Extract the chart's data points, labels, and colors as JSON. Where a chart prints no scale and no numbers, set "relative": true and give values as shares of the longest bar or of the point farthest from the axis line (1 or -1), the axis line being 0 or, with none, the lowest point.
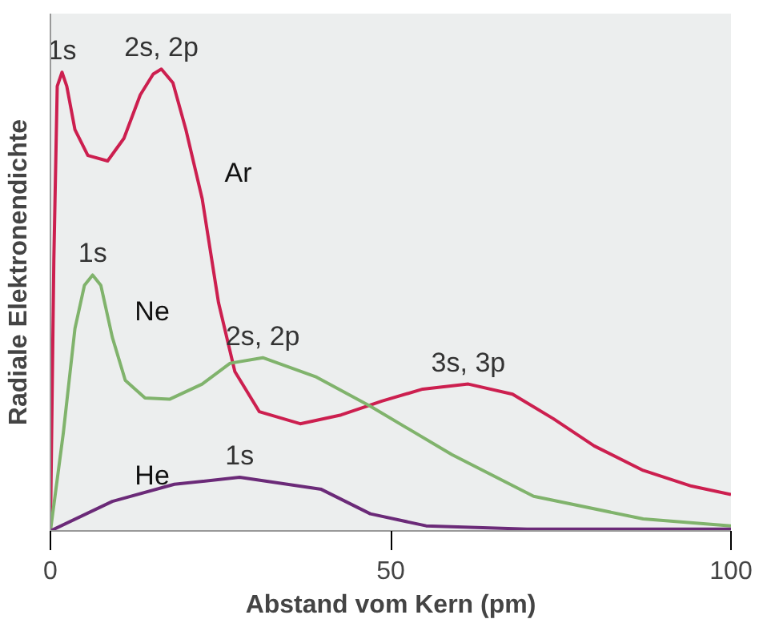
{
  "chart_data": {
    "type": "line",
    "relative": true,
    "xlabel": "Abstand vom Kern (pm)",
    "ylabel": "Radiale Elektronendichte",
    "xlim": [
      0,
      100
    ],
    "xticks": [
      0,
      50,
      100
    ],
    "grid": false,
    "tick_labels": "x",
    "series": [
      {
        "color": "#cc1f4f",
        "x": [
          0,
          0.5,
          1.0,
          1.7,
          2.4,
          3.6,
          5.5,
          8.4,
          10.8,
          13.2,
          15.1,
          16.3,
          18.0,
          19.9,
          22.3,
          24.7,
          27.1,
          30.7,
          36.7,
          42.7,
          48.7,
          54.7,
          61.4,
          67.9,
          73.9,
          79.9,
          87.1,
          94.2,
          100
        ],
        "values": [
          0,
          0.588,
          0.963,
          0.993,
          0.963,
          0.869,
          0.813,
          0.801,
          0.85,
          0.944,
          0.989,
          1.0,
          0.97,
          0.869,
          0.719,
          0.494,
          0.345,
          0.258,
          0.232,
          0.251,
          0.281,
          0.307,
          0.318,
          0.296,
          0.243,
          0.184,
          0.131,
          0.097,
          0.079
        ]
      },
      {
        "color": "#80b36c",
        "x": [
          0,
          1.9,
          3.6,
          5.0,
          6.2,
          7.4,
          9.1,
          11.0,
          13.9,
          17.5,
          22.3,
          26.4,
          31.2,
          39.1,
          47.0,
          59.0,
          71.0,
          87.1,
          100
        ],
        "values": [
          0,
          0.213,
          0.438,
          0.532,
          0.554,
          0.532,
          0.419,
          0.326,
          0.288,
          0.285,
          0.318,
          0.363,
          0.375,
          0.333,
          0.27,
          0.165,
          0.075,
          0.026,
          0.011
        ]
      },
      {
        "color": "#6b2a78",
        "x": [
          0,
          9.1,
          18.2,
          27.8,
          39.8,
          47.0,
          55.2,
          70,
          100
        ],
        "values": [
          0,
          0.064,
          0.101,
          0.116,
          0.09,
          0.037,
          0.011,
          0.004,
          0.004
        ]
      }
    ],
    "annotations": [
      {
        "text": "1s",
        "x": 1.7,
        "y": 0.993
      },
      {
        "text": "2s, 2p",
        "x": 16.3,
        "y": 1.0
      },
      {
        "text": "Ar",
        "x": 22.3,
        "y": 0.719
      },
      {
        "text": "1s",
        "x": 6.2,
        "y": 0.554
      },
      {
        "text": "Ne",
        "x": 9.1,
        "y": 0.419
      },
      {
        "text": "2s, 2p",
        "x": 31.2,
        "y": 0.375
      },
      {
        "text": "3s, 3p",
        "x": 61.4,
        "y": 0.318
      },
      {
        "text": "He",
        "x": 9.1,
        "y": 0.064
      },
      {
        "text": "1s",
        "x": 27.8,
        "y": 0.116
      }
    ]
  }
}
